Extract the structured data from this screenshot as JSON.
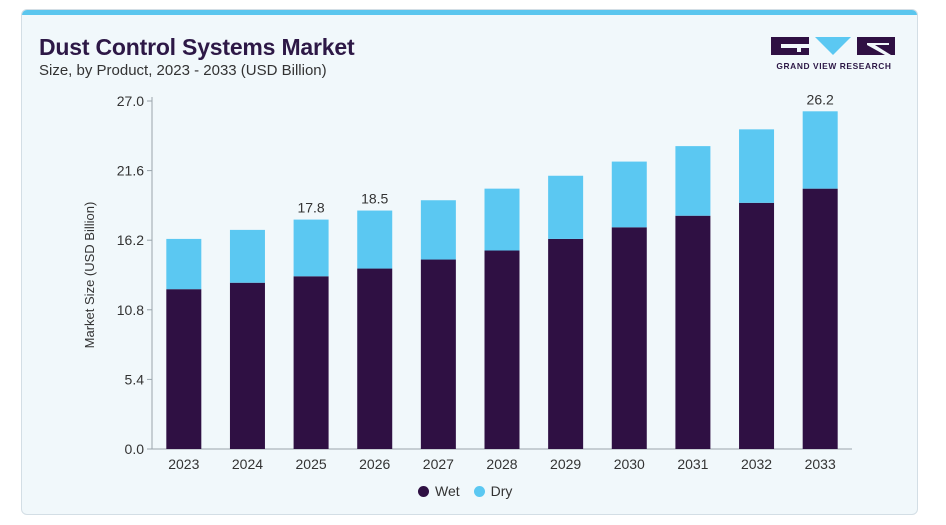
{
  "header": {
    "title": "Dust Control Systems Market",
    "subtitle": "Size, by Product, 2023 - 2033 (USD Billion)"
  },
  "logo": {
    "text": "GRAND VIEW RESEARCH",
    "icon": "gvr-logo-icon"
  },
  "colors": {
    "wet": "#2f1043",
    "dry": "#5bc8f2",
    "accent_bar": "#5bc6ee",
    "card_bg": "#f1f8fb"
  },
  "chart_data": {
    "type": "bar",
    "stacked": true,
    "title": "Dust Control Systems Market",
    "subtitle": "Size, by Product, 2023 - 2033 (USD Billion)",
    "xlabel": "",
    "ylabel": "Market Size (USD Billion)",
    "ylim": [
      0,
      27.0
    ],
    "yticks": [
      "0.0",
      "5.4",
      "10.8",
      "16.2",
      "21.6",
      "27.0"
    ],
    "categories": [
      "2023",
      "2024",
      "2025",
      "2026",
      "2027",
      "2028",
      "2029",
      "2030",
      "2031",
      "2032",
      "2033"
    ],
    "series": [
      {
        "name": "Wet",
        "values": [
          12.4,
          12.9,
          13.4,
          14.0,
          14.7,
          15.4,
          16.3,
          17.2,
          18.1,
          19.1,
          20.2
        ]
      },
      {
        "name": "Dry",
        "values": [
          3.9,
          4.1,
          4.4,
          4.5,
          4.6,
          4.8,
          4.9,
          5.1,
          5.4,
          5.7,
          6.0
        ]
      }
    ],
    "total_labels": [
      "",
      "",
      "17.8",
      "18.5",
      "",
      "",
      "",
      "",
      "",
      "",
      "26.2"
    ],
    "grid": false,
    "legend_position": "bottom"
  }
}
